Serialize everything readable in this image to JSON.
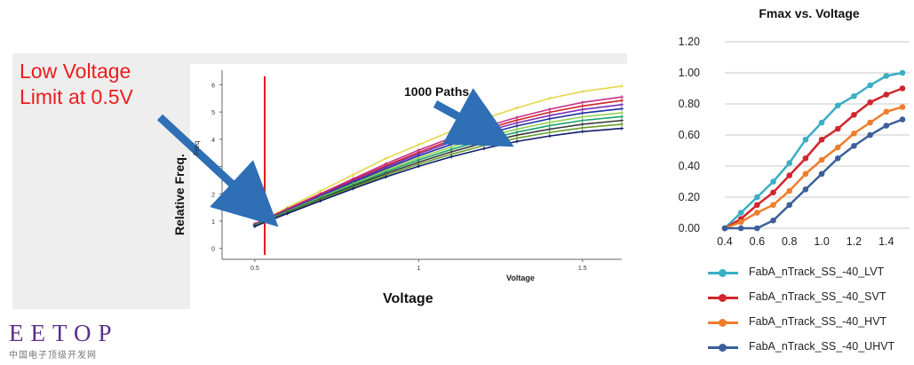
{
  "callout": {
    "line1": "Low Voltage",
    "line2": "Limit at 0.5V"
  },
  "left_chart": {
    "ylabel": "Relative Freq.",
    "xlabel": "Voltage",
    "inner_xlabel": "Voltage",
    "inner_ylabel": "Freq",
    "annotation": "1000 Paths",
    "limit_line_color": "#e01b1b",
    "arrow_color": "#2e6fb5"
  },
  "right_chart_title": "Fmax vs. Voltage",
  "logo": {
    "text": "EETOP",
    "subtext": "中国电子顶级开发网"
  },
  "chart_data": [
    {
      "type": "line",
      "x_ticks": [
        "0.5",
        "1",
        "1.5"
      ],
      "y_ticks": [
        "0",
        "1",
        "2",
        "3",
        "4",
        "5",
        "6"
      ],
      "xlim": [
        0.4,
        1.62
      ],
      "ylim": [
        -0.4,
        6.5
      ],
      "x": [
        0.5,
        0.6,
        0.7,
        0.8,
        0.9,
        1.0,
        1.1,
        1.2,
        1.3,
        1.4,
        1.5,
        1.62
      ],
      "series": [
        {
          "color": "#e5d84a",
          "values": [
            0.9,
            1.5,
            2.1,
            2.7,
            3.3,
            3.8,
            4.3,
            4.75,
            5.15,
            5.5,
            5.75,
            5.95
          ]
        },
        {
          "color": "#c62e8c",
          "values": [
            0.9,
            1.45,
            2.0,
            2.55,
            3.1,
            3.6,
            4.05,
            4.45,
            4.8,
            5.1,
            5.35,
            5.55
          ]
        },
        {
          "color": "#d12424",
          "values": [
            0.88,
            1.42,
            1.97,
            2.5,
            3.03,
            3.52,
            3.97,
            4.36,
            4.7,
            4.99,
            5.22,
            5.42
          ]
        },
        {
          "color": "#7b2fb6",
          "values": [
            0.87,
            1.4,
            1.94,
            2.47,
            2.98,
            3.46,
            3.9,
            4.28,
            4.6,
            4.87,
            5.09,
            5.27
          ]
        },
        {
          "color": "#1f2d9e",
          "values": [
            0.86,
            1.38,
            1.9,
            2.42,
            2.92,
            3.39,
            3.81,
            4.18,
            4.49,
            4.75,
            4.96,
            5.12
          ]
        },
        {
          "color": "#8fd14f",
          "values": [
            0.85,
            1.36,
            1.87,
            2.37,
            2.86,
            3.31,
            3.72,
            4.07,
            4.37,
            4.62,
            4.82,
            4.97
          ]
        },
        {
          "color": "#1aa36b",
          "values": [
            0.84,
            1.34,
            1.84,
            2.33,
            2.8,
            3.24,
            3.63,
            3.97,
            4.26,
            4.5,
            4.69,
            4.83
          ]
        },
        {
          "color": "#3b3b3b",
          "values": [
            0.83,
            1.32,
            1.81,
            2.28,
            2.74,
            3.16,
            3.54,
            3.87,
            4.15,
            4.37,
            4.55,
            4.69
          ]
        },
        {
          "color": "#6a9e2c",
          "values": [
            0.82,
            1.3,
            1.78,
            2.24,
            2.68,
            3.09,
            3.45,
            3.77,
            4.04,
            4.25,
            4.42,
            4.55
          ]
        },
        {
          "color": "#0d1b6b",
          "values": [
            0.81,
            1.28,
            1.74,
            2.19,
            2.62,
            3.01,
            3.36,
            3.66,
            3.92,
            4.12,
            4.28,
            4.4
          ]
        }
      ]
    },
    {
      "type": "line",
      "title": "Fmax vs. Voltage",
      "x": [
        0.4,
        0.5,
        0.6,
        0.7,
        0.8,
        0.9,
        1.0,
        1.1,
        1.2,
        1.3,
        1.4,
        1.5
      ],
      "x_ticks": [
        "0.4",
        "0.6",
        "0.8",
        "1.0",
        "1.2",
        "1.4"
      ],
      "y_ticks": [
        "0.00",
        "0.20",
        "0.40",
        "0.60",
        "0.80",
        "1.00",
        "1.20"
      ],
      "xlim": [
        0.4,
        1.5
      ],
      "ylim": [
        0,
        1.2
      ],
      "grid": true,
      "legend": "bottom",
      "series": [
        {
          "name": "FabA_nTrack_SS_-40_LVT",
          "color": "#3aaec4",
          "values": [
            0.0,
            0.1,
            0.2,
            0.3,
            0.42,
            0.57,
            0.68,
            0.79,
            0.85,
            0.92,
            0.98,
            1.0
          ]
        },
        {
          "name": "FabA_nTrack_SS_-40_SVT",
          "color": "#d1262d",
          "values": [
            0.0,
            0.06,
            0.15,
            0.23,
            0.34,
            0.45,
            0.57,
            0.64,
            0.73,
            0.81,
            0.86,
            0.9
          ]
        },
        {
          "name": "FabA_nTrack_SS_-40_HVT",
          "color": "#ee7d2d",
          "values": [
            0.0,
            0.04,
            0.1,
            0.15,
            0.24,
            0.35,
            0.44,
            0.52,
            0.61,
            0.68,
            0.75,
            0.78
          ]
        },
        {
          "name": "FabA_nTrack_SS_-40_UHVT",
          "color": "#3b5f9a",
          "values": [
            0.0,
            0.0,
            0.0,
            0.05,
            0.15,
            0.25,
            0.35,
            0.45,
            0.53,
            0.6,
            0.66,
            0.7
          ]
        }
      ]
    }
  ]
}
